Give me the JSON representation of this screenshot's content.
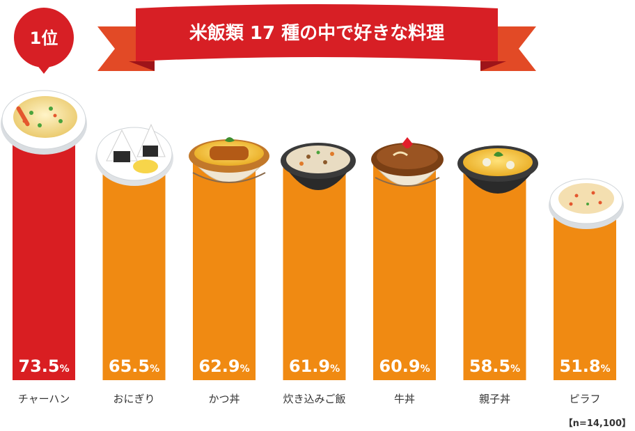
{
  "title": "米飯類 17 種の中で好きな料理",
  "rank_badge": "1位",
  "sample_note": "【n=14,100】",
  "colors": {
    "top_bar": "#d91e22",
    "bar": "#f08a12",
    "ribbon": "#d71f25",
    "ribbon_dark": "#9e1419",
    "ribbon_tail": "#ea5a2a",
    "label_text": "#333333",
    "value_text": "#ffffff"
  },
  "chart_data": {
    "type": "bar",
    "title": "米飯類 17 種の中で好きな料理",
    "categories": [
      "チャーハン",
      "おにぎり",
      "かつ丼",
      "炊き込みご飯",
      "牛丼",
      "親子丼",
      "ピラフ"
    ],
    "values": [
      73.5,
      65.5,
      62.9,
      61.9,
      60.9,
      58.5,
      51.8
    ],
    "value_labels": [
      "73.5",
      "65.5",
      "62.9",
      "61.9",
      "60.9",
      "58.5",
      "51.8"
    ],
    "unit": "%",
    "highlight_index": 0,
    "xlabel": "",
    "ylabel": "",
    "grid": false,
    "legend": "none",
    "icons": [
      "fried-rice-plate-icon",
      "onigiri-plate-icon",
      "katsudon-bowl-icon",
      "takikomi-gohan-bowl-icon",
      "gyudon-bowl-icon",
      "oyakodon-bowl-icon",
      "pilaf-plate-icon"
    ]
  }
}
